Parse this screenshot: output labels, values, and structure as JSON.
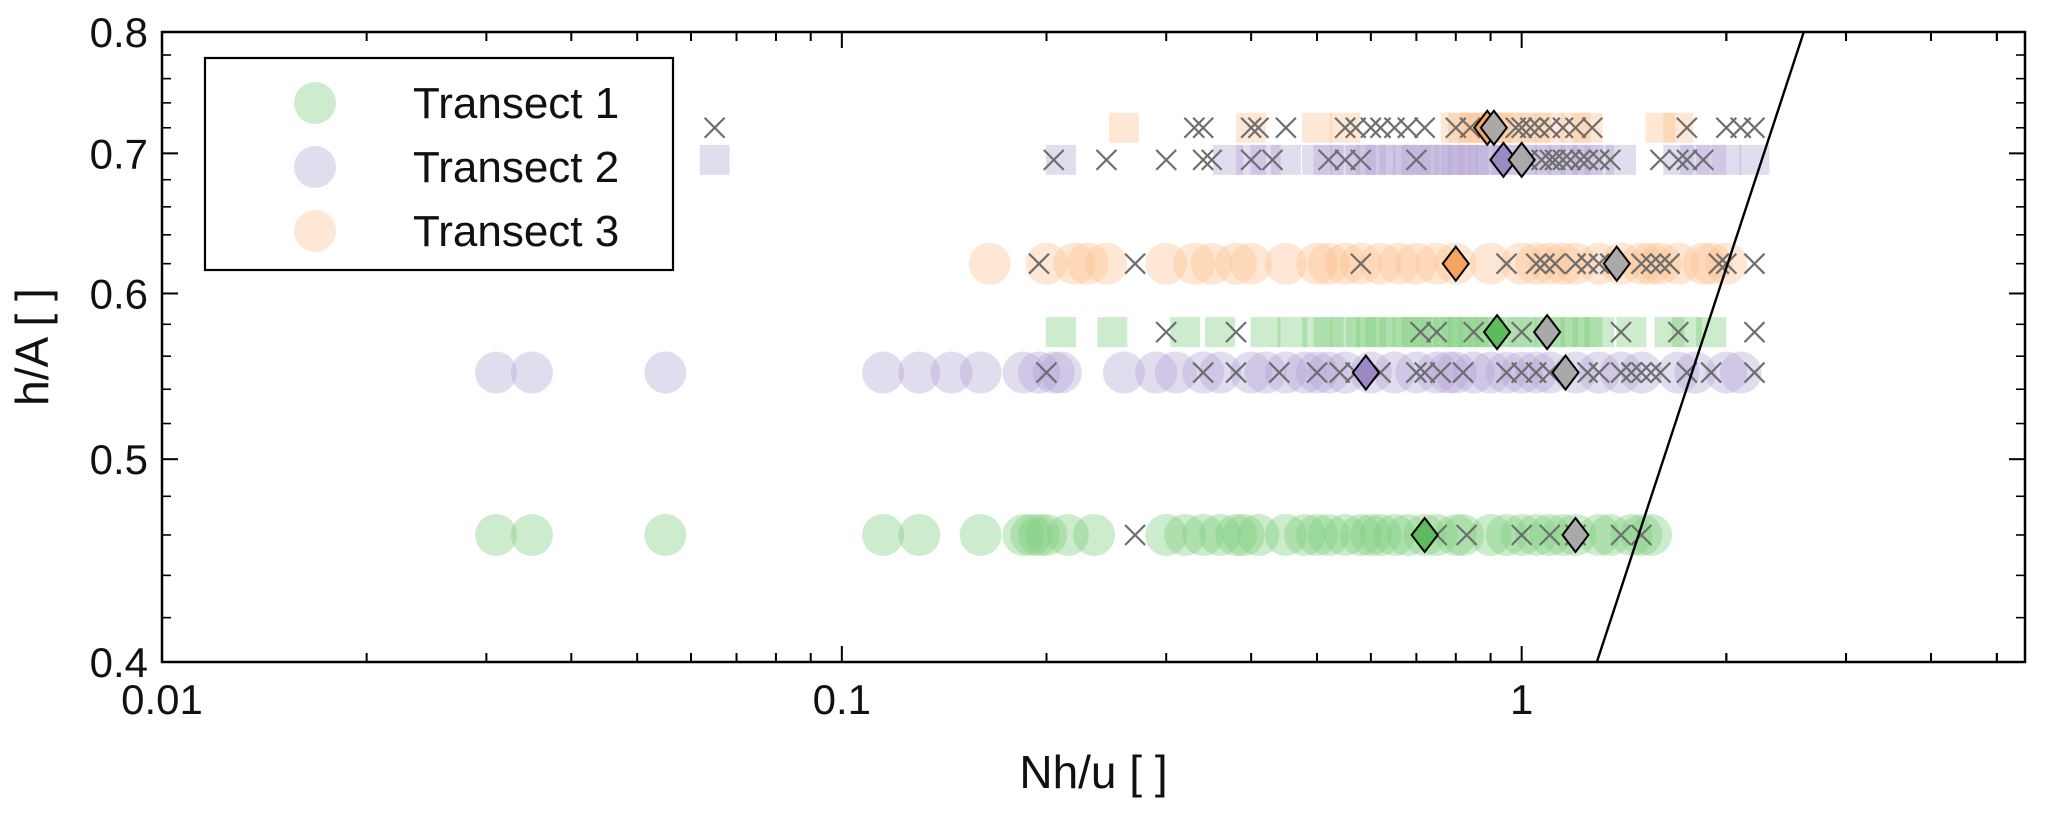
{
  "chart_data": {
    "type": "scatter",
    "title": "",
    "xlabel": "Nh/u [ ]",
    "ylabel": "h/A [ ]",
    "xscale": "log",
    "yscale": "log",
    "xlim": [
      0.01,
      5.5
    ],
    "ylim": [
      0.4,
      0.8
    ],
    "xticks": [
      {
        "value": 0.01,
        "label": "0.01"
      },
      {
        "value": 0.1,
        "label": "0.1"
      },
      {
        "value": 1,
        "label": "1"
      }
    ],
    "yticks": [
      {
        "value": 0.4,
        "label": "0.4"
      },
      {
        "value": 0.5,
        "label": "0.5"
      },
      {
        "value": 0.6,
        "label": "0.6"
      },
      {
        "value": 0.7,
        "label": "0.7"
      },
      {
        "value": 0.8,
        "label": "0.8"
      }
    ],
    "grid": false,
    "legend_position": "top-left",
    "legend": [
      {
        "name": "Transect 1",
        "color": "#7ccd7c"
      },
      {
        "name": "Transect 2",
        "color": "#b4a4d6"
      },
      {
        "name": "Transect 3",
        "color": "#fcc08f"
      }
    ],
    "series": [
      {
        "name": "Transect 1",
        "marker": "circle",
        "color": "#7ccd7c",
        "y": 0.46,
        "x": [
          0.031,
          0.035,
          0.055,
          0.115,
          0.13,
          0.16,
          0.185,
          0.19,
          0.195,
          0.2,
          0.215,
          0.235,
          0.3,
          0.32,
          0.34,
          0.36,
          0.38,
          0.39,
          0.41,
          0.45,
          0.48,
          0.5,
          0.52,
          0.55,
          0.58,
          0.6,
          0.62,
          0.65,
          0.68,
          0.72,
          0.75,
          0.8,
          0.82,
          0.9,
          0.95,
          1.0,
          1.05,
          1.1,
          1.15,
          1.2,
          1.3,
          1.35,
          1.45,
          1.5,
          1.55
        ]
      },
      {
        "name": "Transect 1",
        "marker": "square",
        "color": "#7ccd7c",
        "y": 0.575,
        "x": [
          0.21,
          0.25,
          0.32,
          0.36,
          0.42,
          0.46,
          0.5,
          0.52,
          0.55,
          0.58,
          0.6,
          0.62,
          0.65,
          0.68,
          0.7,
          0.72,
          0.75,
          0.78,
          0.8,
          0.82,
          0.85,
          0.88,
          0.9,
          0.95,
          1.0,
          1.05,
          1.1,
          1.15,
          1.2,
          1.25,
          1.3,
          1.45,
          1.65,
          1.75,
          1.9
        ]
      },
      {
        "name": "Transect 2",
        "marker": "circle",
        "color": "#b4a4d6",
        "y": 0.55,
        "x": [
          0.031,
          0.035,
          0.055,
          0.115,
          0.13,
          0.145,
          0.16,
          0.185,
          0.195,
          0.205,
          0.21,
          0.26,
          0.29,
          0.31,
          0.34,
          0.36,
          0.4,
          0.42,
          0.45,
          0.48,
          0.5,
          0.52,
          0.55,
          0.6,
          0.65,
          0.7,
          0.75,
          0.78,
          0.8,
          0.85,
          0.9,
          0.95,
          1.0,
          1.05,
          1.1,
          1.2,
          1.3,
          1.4,
          1.5,
          1.7,
          1.8,
          2.0,
          2.1
        ]
      },
      {
        "name": "Transect 2",
        "marker": "square",
        "color": "#b4a4d6",
        "y": 0.695,
        "x": [
          0.065,
          0.21,
          0.37,
          0.4,
          0.42,
          0.45,
          0.5,
          0.52,
          0.55,
          0.58,
          0.6,
          0.62,
          0.65,
          0.68,
          0.7,
          0.72,
          0.75,
          0.78,
          0.8,
          0.82,
          0.85,
          0.88,
          0.9,
          0.95,
          1.0,
          1.05,
          1.1,
          1.15,
          1.2,
          1.25,
          1.3,
          1.4,
          1.7,
          1.8,
          1.9,
          2.0,
          2.2
        ]
      },
      {
        "name": "Transect 3",
        "marker": "circle",
        "color": "#fcc08f",
        "y": 0.62,
        "x": [
          0.165,
          0.2,
          0.22,
          0.23,
          0.245,
          0.3,
          0.33,
          0.35,
          0.38,
          0.4,
          0.45,
          0.5,
          0.52,
          0.55,
          0.58,
          0.62,
          0.66,
          0.7,
          0.75,
          0.8,
          0.9,
          1.0,
          1.05,
          1.1,
          1.15,
          1.2,
          1.3,
          1.4,
          1.5,
          1.55,
          1.6,
          1.7,
          1.85,
          1.9,
          2.0
        ]
      },
      {
        "name": "Transect 3",
        "marker": "square",
        "color": "#fcc08f",
        "y": 0.72,
        "x": [
          0.26,
          0.4,
          0.5,
          0.55,
          0.8,
          0.82,
          0.85,
          0.88,
          0.9,
          0.92,
          0.95,
          1.0,
          1.05,
          1.1,
          1.2,
          1.25,
          1.6,
          1.7
        ]
      },
      {
        "name": "",
        "marker": "x",
        "color": "#6e6e6e",
        "points": [
          [
            0.065,
            0.72
          ],
          [
            0.33,
            0.72
          ],
          [
            0.34,
            0.72
          ],
          [
            0.4,
            0.72
          ],
          [
            0.41,
            0.72
          ],
          [
            0.45,
            0.72
          ],
          [
            0.55,
            0.72
          ],
          [
            0.57,
            0.72
          ],
          [
            0.6,
            0.72
          ],
          [
            0.62,
            0.72
          ],
          [
            0.65,
            0.72
          ],
          [
            0.68,
            0.72
          ],
          [
            0.72,
            0.72
          ],
          [
            0.8,
            0.72
          ],
          [
            0.84,
            0.72
          ],
          [
            0.98,
            0.72
          ],
          [
            1.0,
            0.72
          ],
          [
            1.03,
            0.72
          ],
          [
            1.06,
            0.72
          ],
          [
            1.1,
            0.72
          ],
          [
            1.15,
            0.72
          ],
          [
            1.2,
            0.72
          ],
          [
            1.27,
            0.72
          ],
          [
            1.75,
            0.72
          ],
          [
            2.0,
            0.72
          ],
          [
            2.1,
            0.72
          ],
          [
            2.2,
            0.72
          ],
          [
            0.205,
            0.695
          ],
          [
            0.245,
            0.695
          ],
          [
            0.3,
            0.695
          ],
          [
            0.34,
            0.695
          ],
          [
            0.35,
            0.695
          ],
          [
            0.4,
            0.695
          ],
          [
            0.43,
            0.695
          ],
          [
            0.52,
            0.695
          ],
          [
            0.55,
            0.695
          ],
          [
            0.58,
            0.695
          ],
          [
            0.7,
            0.695
          ],
          [
            1.02,
            0.695
          ],
          [
            1.07,
            0.695
          ],
          [
            1.1,
            0.695
          ],
          [
            1.12,
            0.695
          ],
          [
            1.15,
            0.695
          ],
          [
            1.18,
            0.695
          ],
          [
            1.22,
            0.695
          ],
          [
            1.25,
            0.695
          ],
          [
            1.3,
            0.695
          ],
          [
            1.35,
            0.695
          ],
          [
            1.6,
            0.695
          ],
          [
            1.7,
            0.695
          ],
          [
            1.75,
            0.695
          ],
          [
            1.85,
            0.695
          ],
          [
            0.195,
            0.62
          ],
          [
            0.27,
            0.62
          ],
          [
            0.58,
            0.62
          ],
          [
            0.95,
            0.62
          ],
          [
            1.05,
            0.62
          ],
          [
            1.08,
            0.62
          ],
          [
            1.12,
            0.62
          ],
          [
            1.2,
            0.62
          ],
          [
            1.25,
            0.62
          ],
          [
            1.3,
            0.62
          ],
          [
            1.35,
            0.62
          ],
          [
            1.5,
            0.62
          ],
          [
            1.55,
            0.62
          ],
          [
            1.6,
            0.62
          ],
          [
            1.65,
            0.62
          ],
          [
            1.95,
            0.62
          ],
          [
            2.0,
            0.62
          ],
          [
            2.2,
            0.62
          ],
          [
            0.3,
            0.575
          ],
          [
            0.38,
            0.575
          ],
          [
            0.71,
            0.575
          ],
          [
            0.75,
            0.575
          ],
          [
            0.85,
            0.575
          ],
          [
            1.0,
            0.575
          ],
          [
            1.4,
            0.575
          ],
          [
            1.7,
            0.575
          ],
          [
            2.2,
            0.575
          ],
          [
            0.2,
            0.55
          ],
          [
            0.34,
            0.55
          ],
          [
            0.38,
            0.55
          ],
          [
            0.44,
            0.55
          ],
          [
            0.5,
            0.55
          ],
          [
            0.54,
            0.55
          ],
          [
            0.57,
            0.55
          ],
          [
            0.62,
            0.55
          ],
          [
            0.7,
            0.55
          ],
          [
            0.72,
            0.55
          ],
          [
            0.76,
            0.55
          ],
          [
            0.82,
            0.55
          ],
          [
            0.95,
            0.55
          ],
          [
            1.0,
            0.55
          ],
          [
            1.05,
            0.55
          ],
          [
            1.1,
            0.55
          ],
          [
            1.25,
            0.55
          ],
          [
            1.3,
            0.55
          ],
          [
            1.4,
            0.55
          ],
          [
            1.45,
            0.55
          ],
          [
            1.5,
            0.55
          ],
          [
            1.55,
            0.55
          ],
          [
            1.6,
            0.55
          ],
          [
            1.75,
            0.55
          ],
          [
            1.9,
            0.55
          ],
          [
            2.2,
            0.55
          ],
          [
            0.27,
            0.46
          ],
          [
            0.75,
            0.46
          ],
          [
            0.83,
            0.46
          ],
          [
            1.0,
            0.46
          ],
          [
            1.1,
            0.46
          ],
          [
            1.2,
            0.46
          ],
          [
            1.4,
            0.46
          ],
          [
            1.5,
            0.46
          ]
        ]
      },
      {
        "name": "",
        "marker": "diamond",
        "diamonds": [
          {
            "x": 0.89,
            "y": 0.72,
            "color": "#f4a460"
          },
          {
            "x": 0.91,
            "y": 0.72,
            "color": "#a9a9a9"
          },
          {
            "x": 0.94,
            "y": 0.695,
            "color": "#9b89c4"
          },
          {
            "x": 1.0,
            "y": 0.695,
            "color": "#a9a9a9"
          },
          {
            "x": 0.8,
            "y": 0.62,
            "color": "#f4a460"
          },
          {
            "x": 1.38,
            "y": 0.62,
            "color": "#a9a9a9"
          },
          {
            "x": 0.92,
            "y": 0.575,
            "color": "#5dbb5d"
          },
          {
            "x": 1.09,
            "y": 0.575,
            "color": "#a9a9a9"
          },
          {
            "x": 0.59,
            "y": 0.55,
            "color": "#9b89c4"
          },
          {
            "x": 1.16,
            "y": 0.55,
            "color": "#a9a9a9"
          },
          {
            "x": 0.72,
            "y": 0.46,
            "color": "#5dbb5d"
          },
          {
            "x": 1.2,
            "y": 0.46,
            "color": "#a9a9a9"
          }
        ]
      },
      {
        "name": "",
        "marker": "line",
        "color": "#000000",
        "points": [
          [
            1.29,
            0.4
          ],
          [
            2.6,
            0.8
          ]
        ]
      }
    ]
  }
}
